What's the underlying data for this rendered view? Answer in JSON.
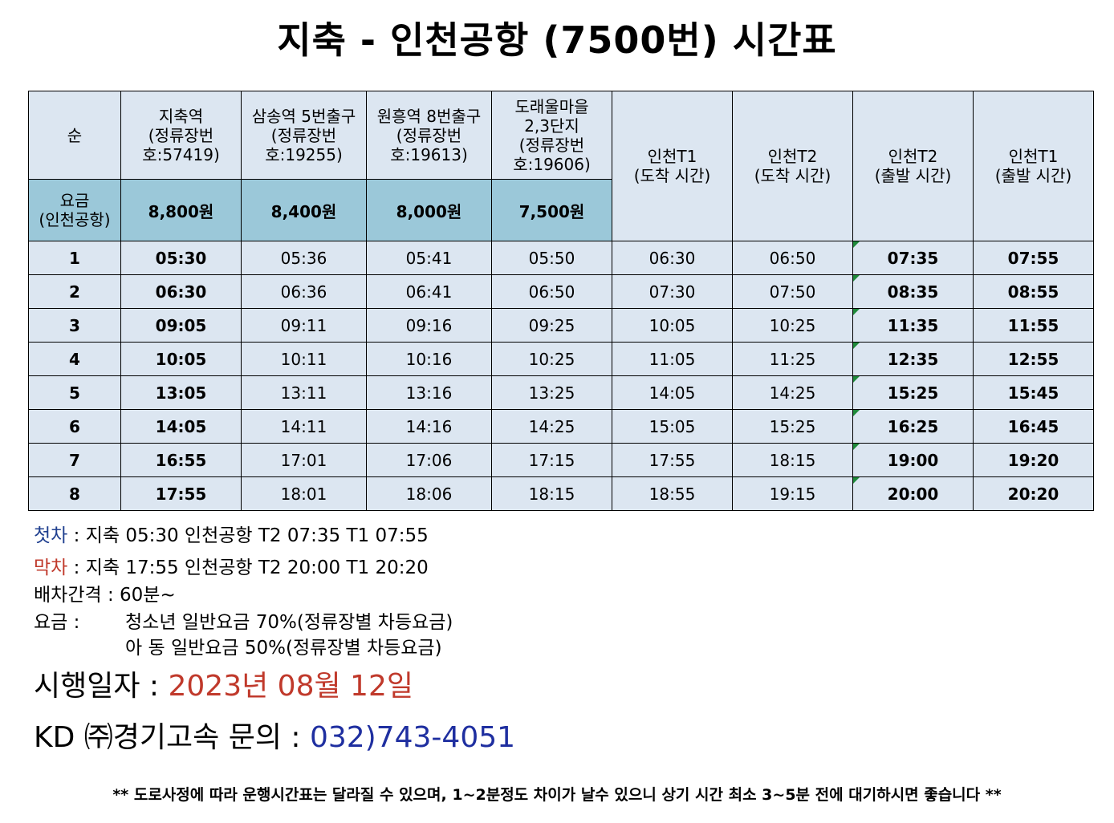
{
  "title": "지축 - 인천공항 (7500번) 시간표",
  "header": {
    "seq": "순",
    "stops": [
      {
        "line1": "지축역",
        "line2": "(정류장번",
        "line3": "호:57419)"
      },
      {
        "line1": "삼송역 5번출구",
        "line2": "(정류장번",
        "line3": "호:19255)"
      },
      {
        "line1": "원흥역 8번출구",
        "line2": "(정류장번",
        "line3": "호:19613)"
      },
      {
        "line1": "도래울마을",
        "line1b": "2,3단지",
        "line2": "(정류장번",
        "line3": "호:19606)"
      }
    ],
    "airport_cols": [
      {
        "line1": "인천T1",
        "line2": "(도착 시간)"
      },
      {
        "line1": "인천T2",
        "line2": "(도착 시간)"
      },
      {
        "line1": "인천T2",
        "line2": "(출발 시간)"
      },
      {
        "line1": "인천T1",
        "line2": "(출발 시간)"
      }
    ],
    "fare_label_1": "요금",
    "fare_label_2": "(인천공항)",
    "fares": [
      "8,800원",
      "8,400원",
      "8,000원",
      "7,500원"
    ]
  },
  "rows": [
    [
      "1",
      "05:30",
      "05:36",
      "05:41",
      "05:50",
      "06:30",
      "06:50",
      "07:35",
      "07:55"
    ],
    [
      "2",
      "06:30",
      "06:36",
      "06:41",
      "06:50",
      "07:30",
      "07:50",
      "08:35",
      "08:55"
    ],
    [
      "3",
      "09:05",
      "09:11",
      "09:16",
      "09:25",
      "10:05",
      "10:25",
      "11:35",
      "11:55"
    ],
    [
      "4",
      "10:05",
      "10:11",
      "10:16",
      "10:25",
      "11:05",
      "11:25",
      "12:35",
      "12:55"
    ],
    [
      "5",
      "13:05",
      "13:11",
      "13:16",
      "13:25",
      "14:05",
      "14:25",
      "15:25",
      "15:45"
    ],
    [
      "6",
      "14:05",
      "14:11",
      "14:16",
      "14:25",
      "15:05",
      "15:25",
      "16:25",
      "16:45"
    ],
    [
      "7",
      "16:55",
      "17:01",
      "17:06",
      "17:15",
      "17:55",
      "18:15",
      "19:00",
      "19:20"
    ],
    [
      "8",
      "17:55",
      "18:01",
      "18:06",
      "18:15",
      "18:55",
      "19:15",
      "20:00",
      "20:20"
    ]
  ],
  "info": {
    "first_label": "첫차",
    "first_text": " : 지축 05:30  인천공항 T2 07:35  T1 07:55",
    "last_label": "막차",
    "last_text": " : 지축 17:55  인천공항 T2 20:00  T1 20:20",
    "interval": "배차간격 :  60분~",
    "fare_label": "요금 :",
    "fare_youth": "청소년 일반요금 70%(정류장별 차등요금)",
    "fare_child": "아   동 일반요금 50%(정류장별 차등요금)"
  },
  "effective": {
    "label": "시행일자 : ",
    "date": "2023년 08월 12일"
  },
  "contact": {
    "label": "KD ㈜경기고속 문의 : ",
    "phone": "032)743-4051"
  },
  "footnote": "** 도로사정에 따라 운행시간표는 달라질 수 있으며, 1~2분정도 차이가 날수 있으니 상기 시간 최소 3~5분 전에 대기하시면 좋습니다 **",
  "colors": {
    "header_bg": "#dce6f1",
    "fare_bg": "#9bc8d9",
    "first_label": "#1f3f8f",
    "last_label": "#c0392b",
    "date": "#c0392b",
    "phone": "#1f2fa0"
  }
}
